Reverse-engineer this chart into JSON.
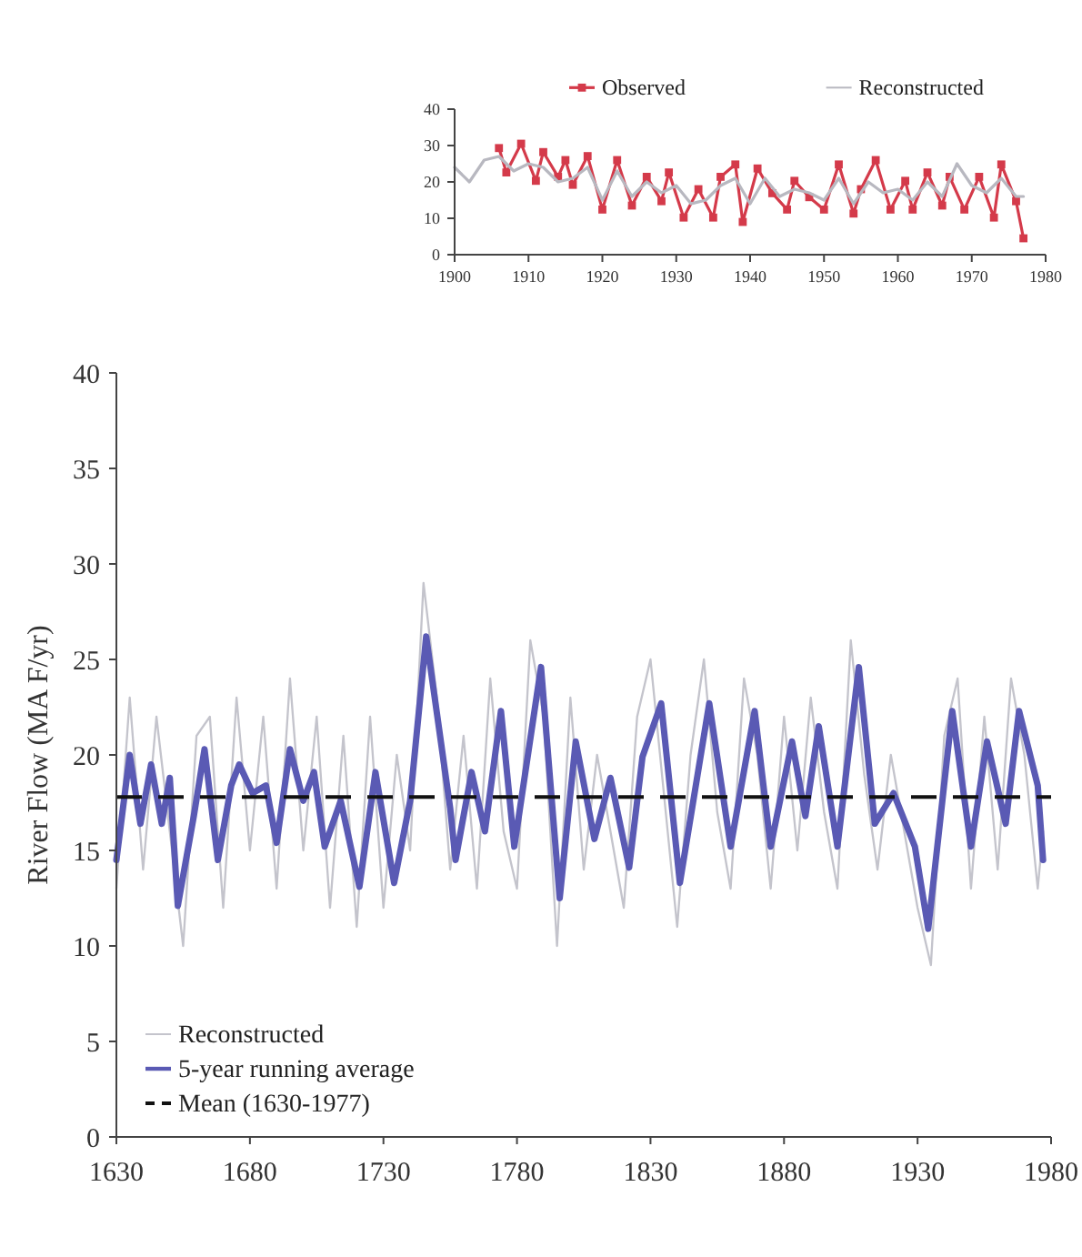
{
  "chart_data": [
    {
      "type": "line",
      "ylabel": "River Flow (MA F/yr)",
      "xlim": [
        1630,
        1980
      ],
      "xticks": [
        1630,
        1680,
        1730,
        1780,
        1830,
        1880,
        1930,
        1980
      ],
      "ylim": [
        0,
        40
      ],
      "yticks": [
        0,
        5,
        10,
        15,
        20,
        25,
        30,
        35,
        40
      ],
      "legend": "bottom left",
      "series": [
        {
          "name": "Reconstructed",
          "color": "#c4c4cc",
          "x": [
            1630,
            1635,
            1640,
            1645,
            1650,
            1655,
            1660,
            1665,
            1670,
            1675,
            1680,
            1685,
            1690,
            1695,
            1700,
            1705,
            1710,
            1715,
            1720,
            1725,
            1730,
            1735,
            1740,
            1745,
            1750,
            1755,
            1760,
            1765,
            1770,
            1775,
            1780,
            1785,
            1790,
            1795,
            1800,
            1805,
            1810,
            1815,
            1820,
            1825,
            1830,
            1835,
            1840,
            1845,
            1850,
            1855,
            1860,
            1865,
            1870,
            1875,
            1880,
            1885,
            1890,
            1895,
            1900,
            1905,
            1910,
            1915,
            1920,
            1925,
            1930,
            1935,
            1940,
            1945,
            1950,
            1955,
            1960,
            1965,
            1970,
            1975,
            1977
          ],
          "values": [
            13,
            23,
            14,
            22,
            16,
            10,
            21,
            22,
            12,
            23,
            15,
            22,
            13,
            24,
            15,
            22,
            12,
            21,
            11,
            22,
            12,
            20,
            15,
            29,
            23,
            14,
            21,
            13,
            24,
            16,
            13,
            26,
            22,
            10,
            23,
            14,
            20,
            16,
            12,
            22,
            25,
            18,
            11,
            20,
            25,
            17,
            13,
            24,
            20,
            13,
            22,
            15,
            23,
            17,
            13,
            26,
            19,
            14,
            20,
            16,
            12,
            9,
            21,
            24,
            13,
            22,
            14,
            24,
            20,
            13,
            16
          ]
        },
        {
          "name": "5-year running average",
          "color": "#5a5ab4",
          "x": [
            1630,
            1635,
            1639,
            1643,
            1647,
            1650,
            1653,
            1659,
            1663,
            1668,
            1673,
            1676,
            1681,
            1686,
            1690,
            1695,
            1700,
            1704,
            1708,
            1714,
            1721,
            1727,
            1734,
            1740,
            1746,
            1755,
            1757,
            1763,
            1768,
            1774,
            1779,
            1789,
            1796,
            1802,
            1809,
            1815,
            1822,
            1827,
            1834,
            1841,
            1852,
            1860,
            1869,
            1875,
            1883,
            1888,
            1893,
            1900,
            1908,
            1914,
            1921,
            1929,
            1934,
            1943,
            1950,
            1956,
            1963,
            1968,
            1975,
            1977
          ],
          "values": [
            14.5,
            20,
            16.4,
            19.5,
            16.4,
            18.8,
            12.1,
            16.8,
            20.3,
            14.5,
            18.4,
            19.5,
            18,
            18.4,
            15.4,
            20.3,
            17.6,
            19.1,
            15.2,
            17.6,
            13.1,
            19.1,
            13.3,
            17.6,
            26.2,
            17.2,
            14.5,
            19.1,
            16,
            22.3,
            15.2,
            24.6,
            12.5,
            20.7,
            15.6,
            18.8,
            14.1,
            19.9,
            22.7,
            13.3,
            22.7,
            15.2,
            22.3,
            15.2,
            20.7,
            16.8,
            21.5,
            15.2,
            24.6,
            16.4,
            18,
            15.2,
            10.9,
            22.3,
            15.2,
            20.7,
            16.4,
            22.3,
            18.4,
            14.5
          ]
        }
      ],
      "ref_lines": [
        {
          "axis": "y",
          "value": 17.8,
          "label": "Mean (1630-1977)",
          "color": "#111111",
          "line_style": "dashed"
        }
      ]
    },
    {
      "type": "line",
      "xlim": [
        1900,
        1980
      ],
      "xticks": [
        1900,
        1910,
        1920,
        1930,
        1940,
        1950,
        1960,
        1970,
        1980
      ],
      "ylim": [
        0,
        40
      ],
      "yticks": [
        0,
        10,
        20,
        30,
        40
      ],
      "legend": "top",
      "series": [
        {
          "name": "Observed",
          "color": "#d43a4a",
          "marker": "square",
          "x": [
            1906,
            1907,
            1909,
            1911,
            1912,
            1914,
            1915,
            1916,
            1918,
            1920,
            1922,
            1924,
            1926,
            1928,
            1929,
            1931,
            1933,
            1935,
            1936,
            1938,
            1939,
            1941,
            1943,
            1945,
            1946,
            1948,
            1950,
            1952,
            1954,
            1955,
            1957,
            1959,
            1961,
            1962,
            1964,
            1966,
            1967,
            1969,
            1971,
            1973,
            1974,
            1976,
            1977
          ],
          "values": [
            29.3,
            22.6,
            30.5,
            20.3,
            28.2,
            21.4,
            26,
            19.2,
            27.1,
            12.4,
            26,
            13.5,
            21.4,
            14.7,
            22.6,
            10.2,
            18,
            10.2,
            21.4,
            24.8,
            9,
            23.7,
            16.9,
            12.4,
            20.3,
            15.8,
            12.4,
            24.8,
            11.3,
            18,
            26,
            12.4,
            20.3,
            12.4,
            22.6,
            13.5,
            21.4,
            12.4,
            21.4,
            10.2,
            24.8,
            14.7,
            4.5
          ]
        },
        {
          "name": "Reconstructed",
          "color": "#b8b8c0",
          "x": [
            1900,
            1902,
            1904,
            1906,
            1908,
            1910,
            1912,
            1914,
            1916,
            1918,
            1920,
            1922,
            1924,
            1926,
            1928,
            1930,
            1932,
            1934,
            1936,
            1938,
            1940,
            1942,
            1944,
            1946,
            1948,
            1950,
            1952,
            1954,
            1956,
            1958,
            1960,
            1962,
            1964,
            1966,
            1968,
            1970,
            1972,
            1974,
            1976,
            1977
          ],
          "values": [
            24,
            20,
            26,
            27,
            23,
            25,
            24,
            20,
            21,
            24,
            15,
            23,
            16,
            20,
            17,
            19,
            14,
            15,
            19,
            21,
            14,
            21,
            16,
            18,
            17,
            15,
            21,
            14,
            20,
            17,
            18,
            15,
            20,
            16,
            25,
            19,
            17,
            21,
            16,
            16
          ]
        }
      ]
    }
  ]
}
